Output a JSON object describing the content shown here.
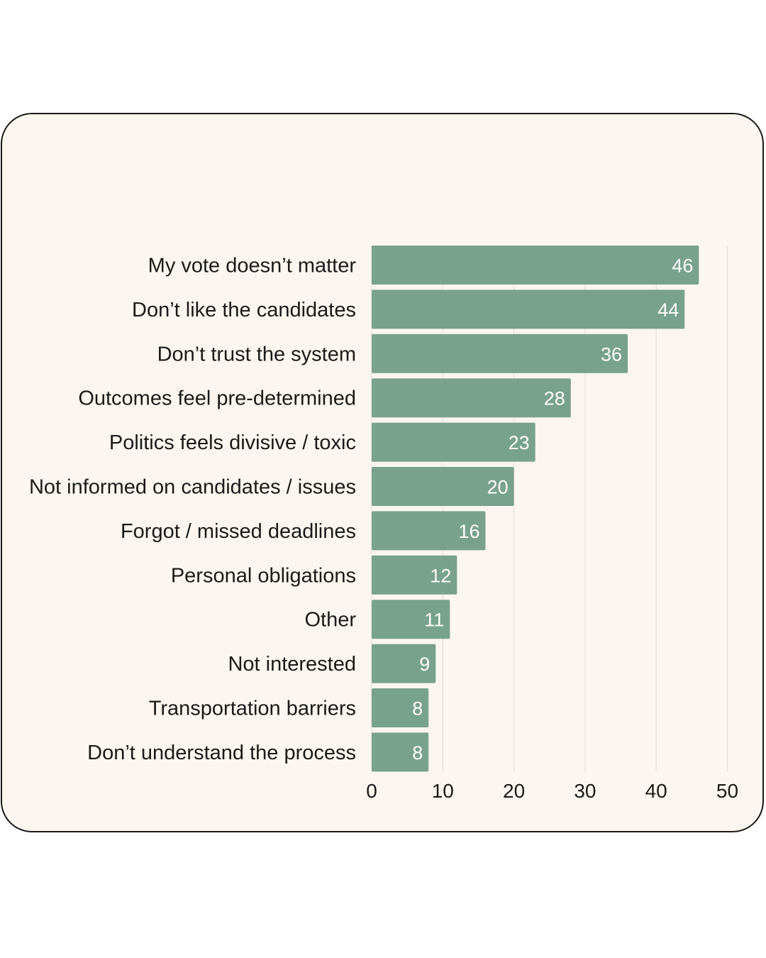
{
  "chart_data": {
    "type": "bar",
    "orientation": "horizontal",
    "title": "",
    "xlabel": "",
    "ylabel": "",
    "categories": [
      "My vote doesn’t matter",
      "Don’t like the candidates",
      "Don’t trust the system",
      "Outcomes feel pre-determined",
      "Politics feels divisive / toxic",
      "Not informed on candidates / issues",
      "Forgot / missed deadlines",
      "Personal obligations",
      "Other",
      "Not interested",
      "Transportation barriers",
      "Don’t understand the process"
    ],
    "values": [
      46,
      44,
      36,
      28,
      23,
      20,
      16,
      12,
      11,
      9,
      8,
      8
    ],
    "xlim": [
      0,
      50
    ],
    "xticks": [
      0,
      10,
      20,
      30,
      40,
      50
    ],
    "grid": "vertical",
    "legend": "none",
    "bar_color": "#78a28d",
    "data_labels": true
  }
}
